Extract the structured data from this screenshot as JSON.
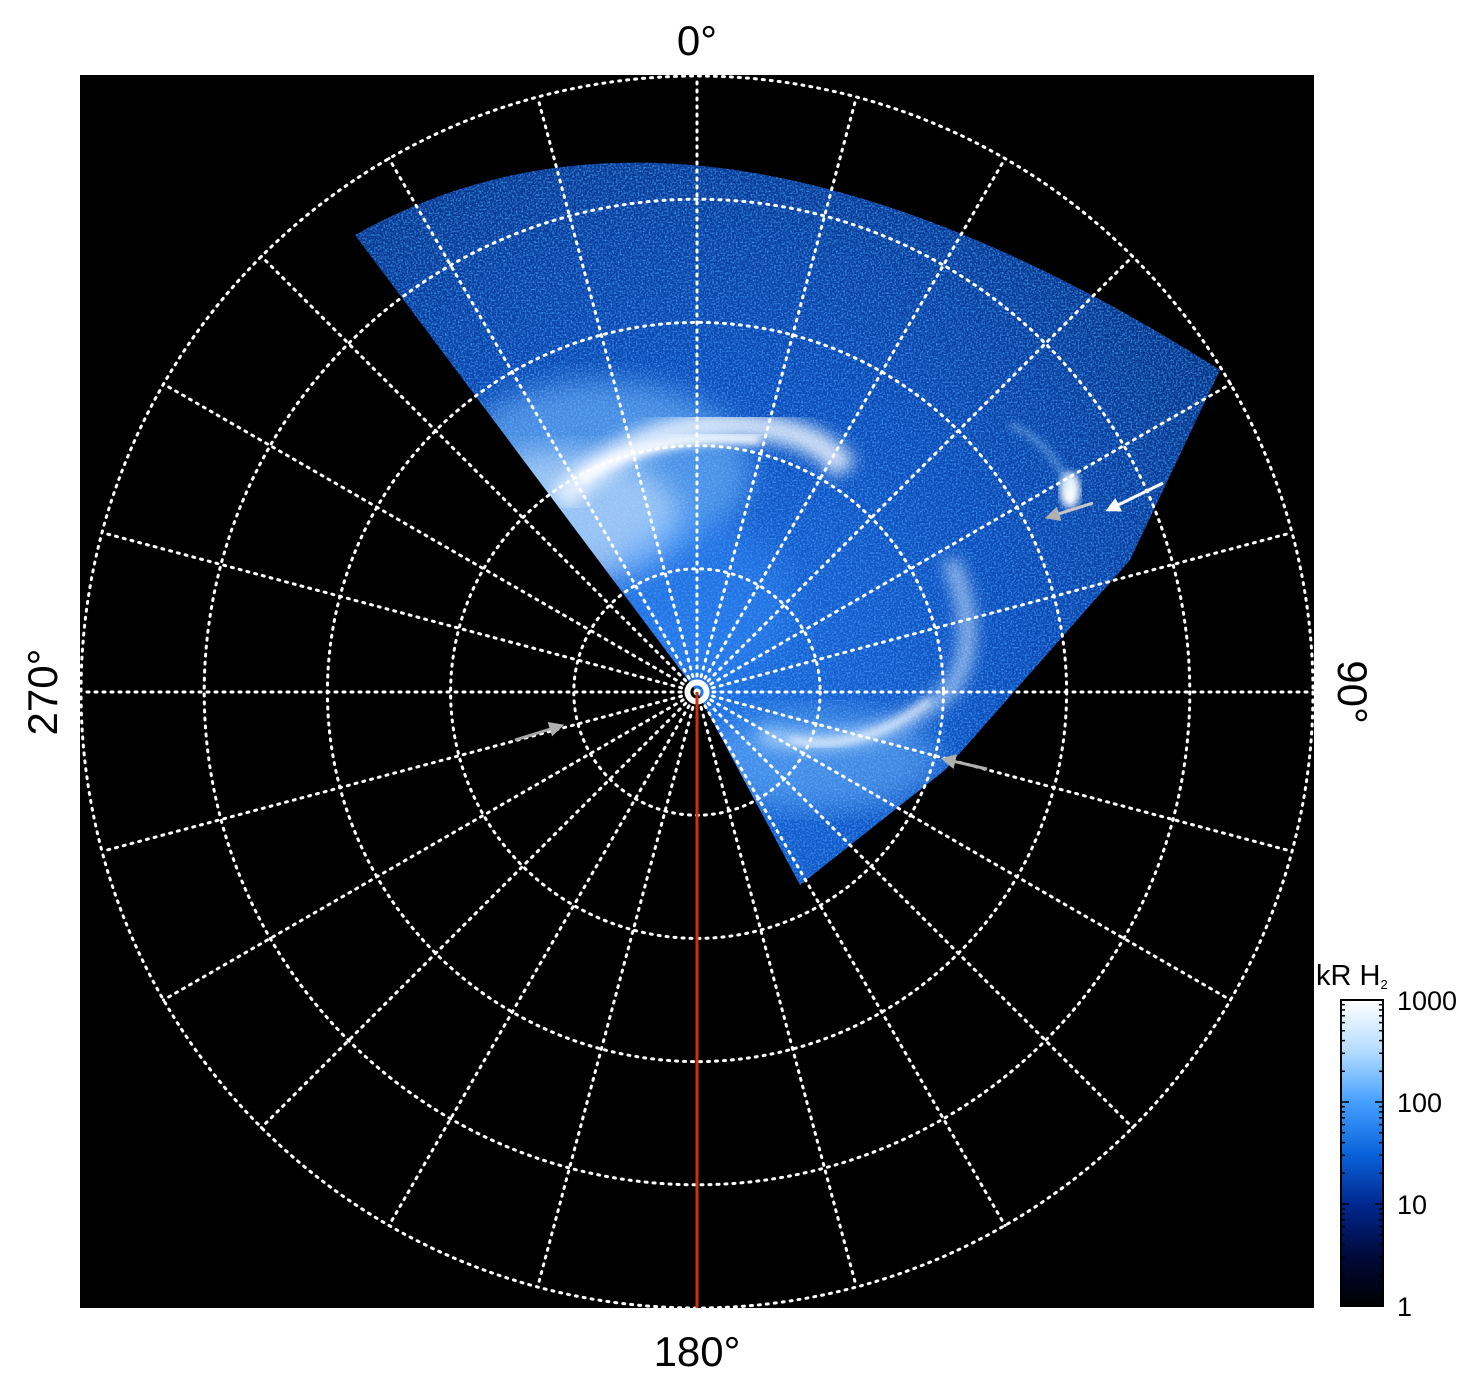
{
  "polar_map": {
    "angle_labels": {
      "top": "0°",
      "right": "90°",
      "bottom": "180°",
      "left": "270°"
    },
    "background_color": "#000000",
    "grid_color": "#ffffff",
    "meridian_line_color": "#cc3300",
    "ring_count": 5,
    "spoke_step_degrees": 15
  },
  "colorbar": {
    "title": "kR H",
    "title_subscript": "2",
    "scale": "log",
    "range": [
      1,
      1000
    ],
    "tick_labels": [
      "1000",
      "100",
      "10",
      "1"
    ],
    "colors": [
      "#000000",
      "#000a3c",
      "#002890",
      "#0a64dc",
      "#46a0ff",
      "#b4dcff",
      "#ffffff"
    ]
  },
  "annotations": {
    "arrow_colors": [
      "#ffffff",
      "#bbbbbb",
      "#aaaaaa"
    ]
  }
}
